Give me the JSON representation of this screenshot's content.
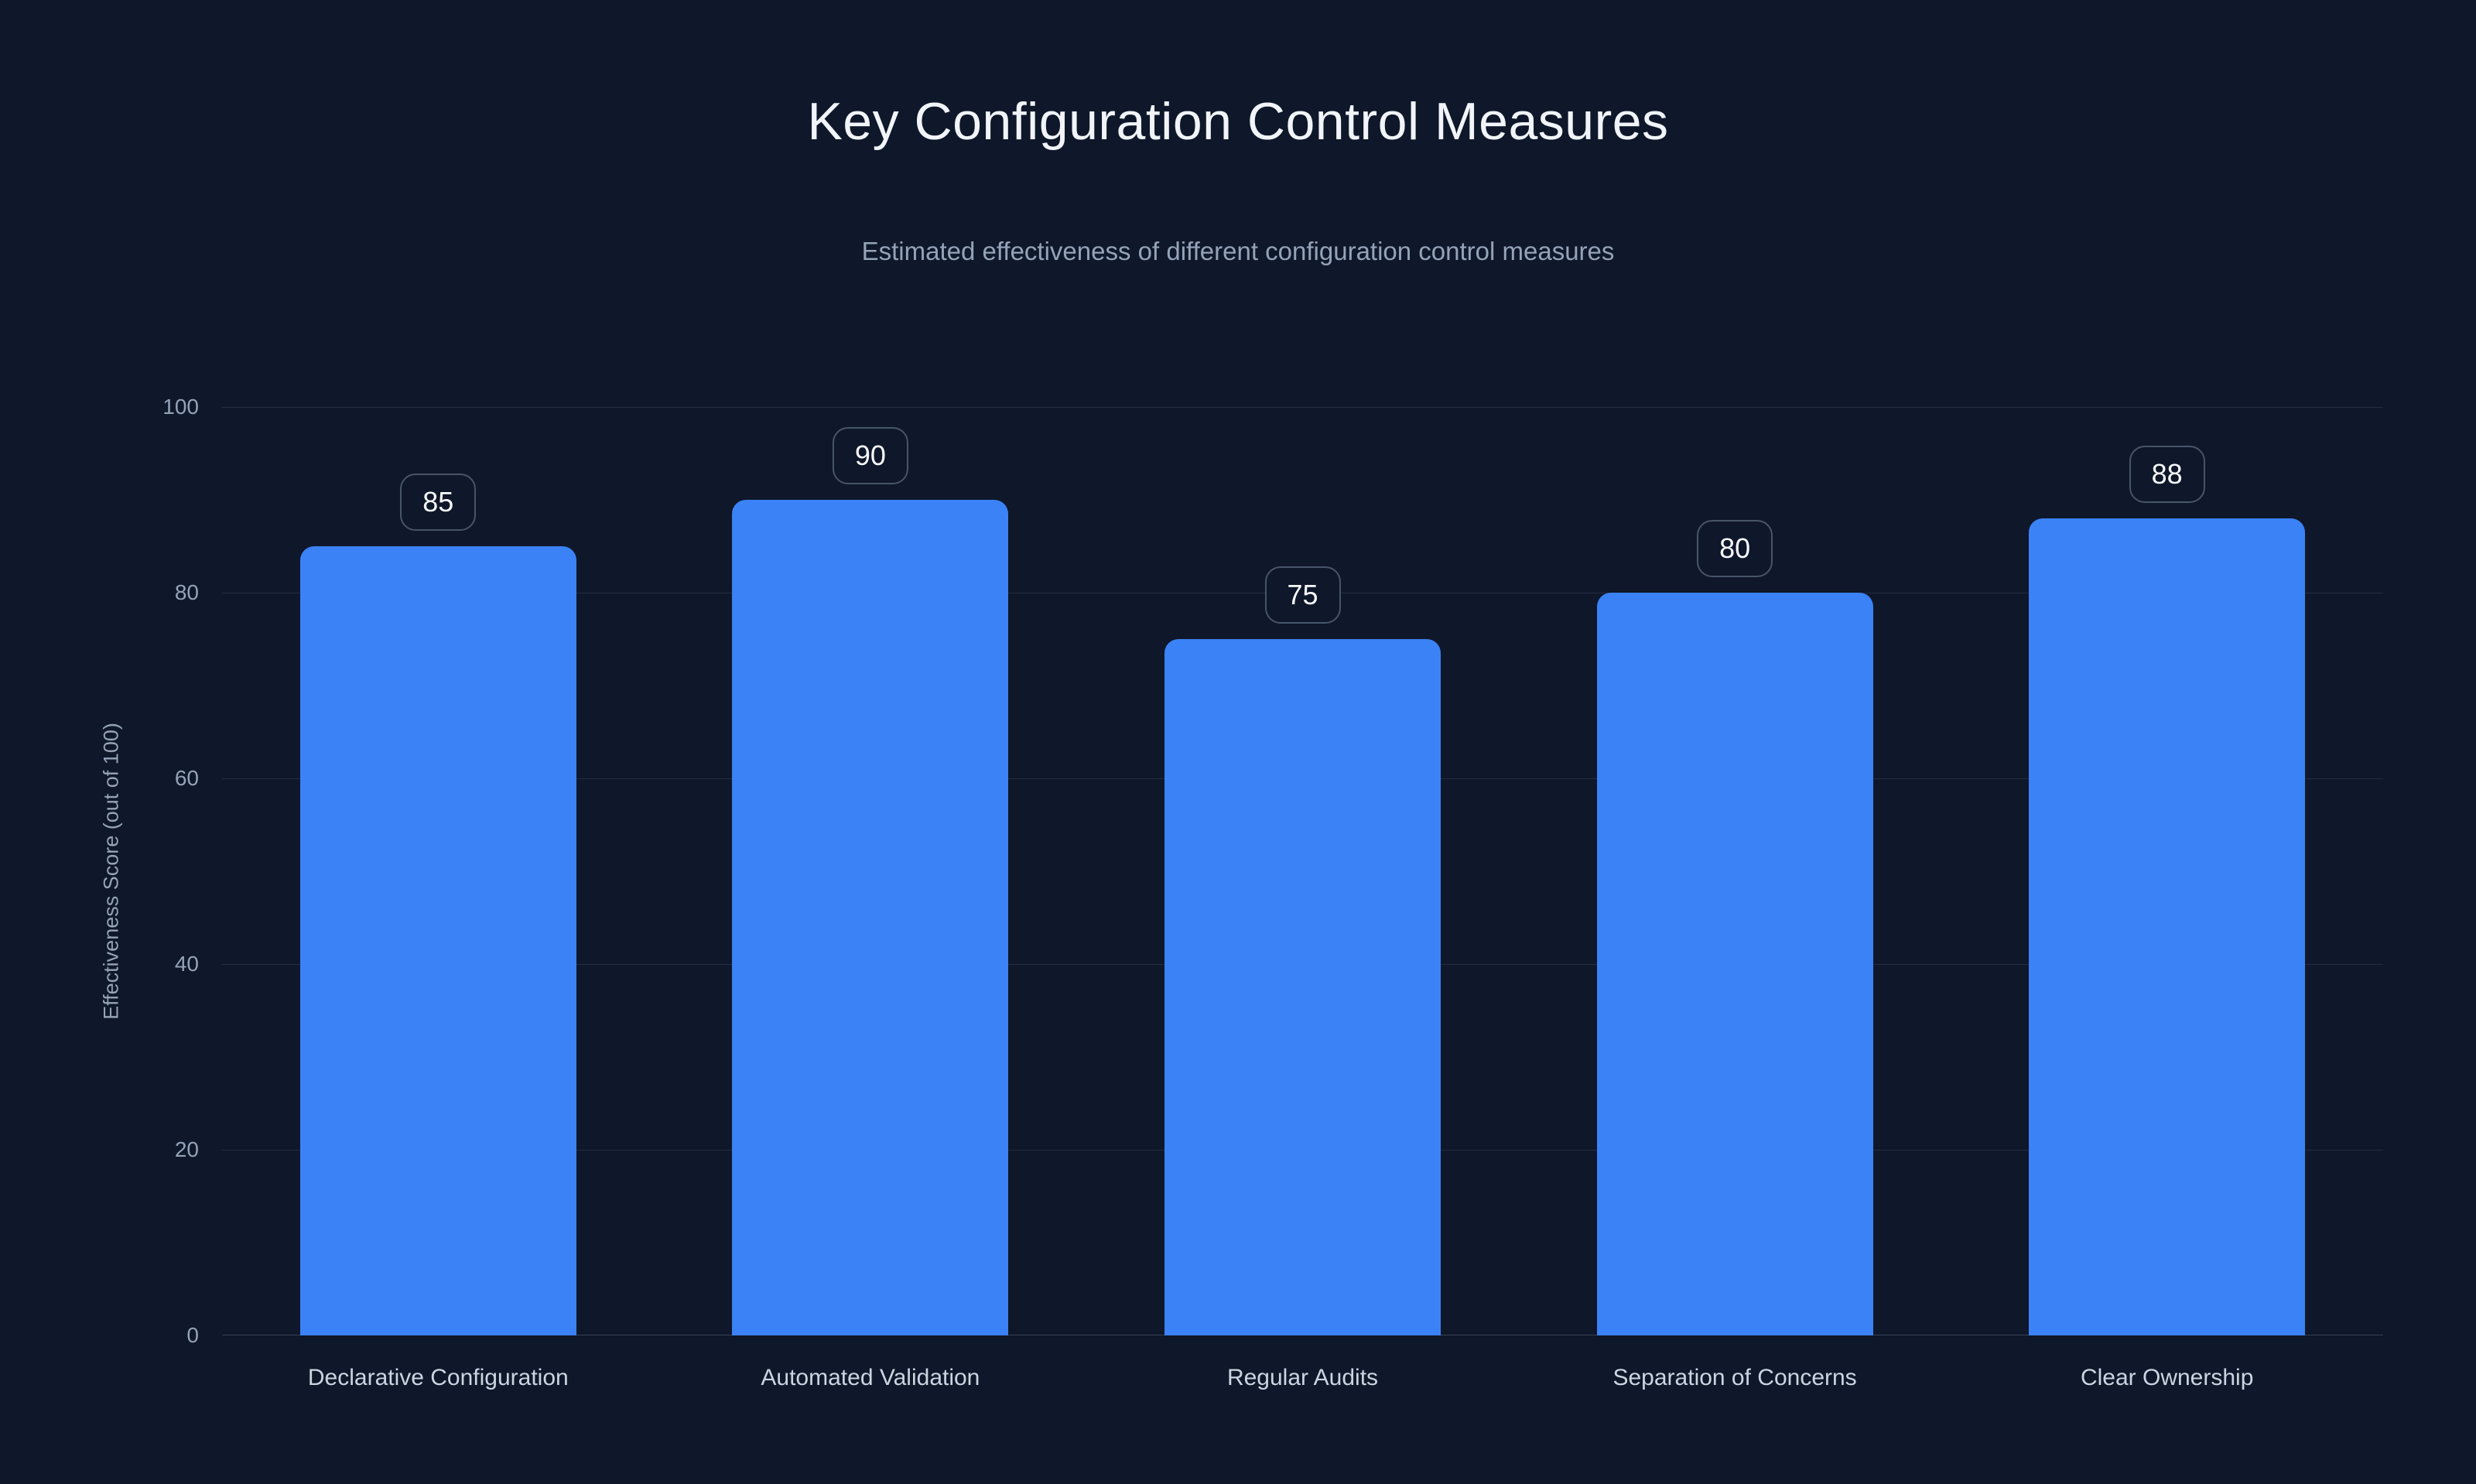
{
  "header": {
    "title": "Key Configuration Control Measures",
    "subtitle": "Estimated effectiveness of different configuration control measures"
  },
  "chart_data": {
    "type": "bar",
    "title": "Key Configuration Control Measures",
    "subtitle": "Estimated effectiveness of different configuration control measures",
    "categories": [
      "Declarative Configuration",
      "Automated Validation",
      "Regular Audits",
      "Separation of Concerns",
      "Clear Ownership"
    ],
    "values": [
      85,
      90,
      75,
      80,
      88
    ],
    "value_labels": [
      "85",
      "90",
      "75",
      "80",
      "88"
    ],
    "xlabel": "",
    "ylabel": "Effectiveness Score (out of 100)",
    "ylim": [
      0,
      100
    ],
    "yticks": [
      0,
      20,
      40,
      60,
      80,
      100
    ],
    "grid": true,
    "legend": false,
    "colors": {
      "background": "#0f172a",
      "bar": "#3b82f6",
      "gridline": "rgba(148,163,184,0.16)",
      "title": "#f1f5f9",
      "subtitle": "#94a3b8",
      "tick_label": "#94a3b8",
      "category_label": "#cbd5e1",
      "badge_border": "#475569",
      "badge_text": "#f8fafc"
    }
  }
}
